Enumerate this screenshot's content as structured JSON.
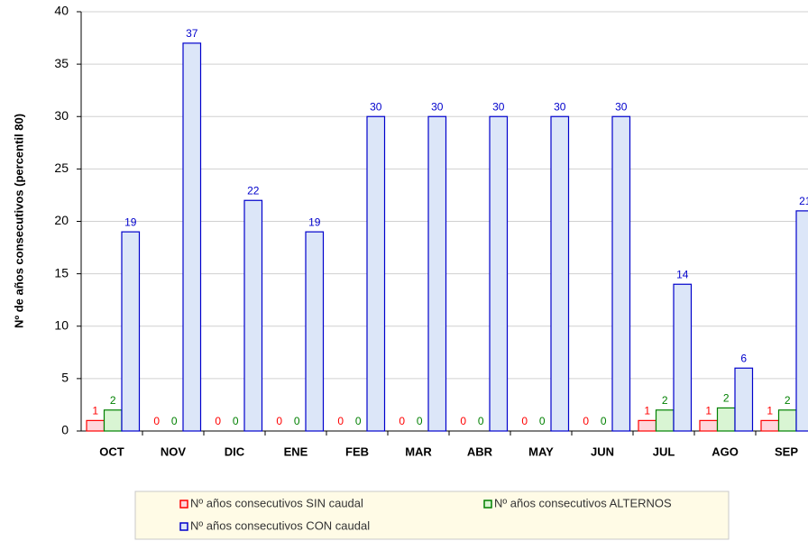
{
  "chart_data": {
    "type": "bar",
    "y_label": "Nº de años consecutivos (percentil 80)",
    "categories": [
      "OCT",
      "NOV",
      "DIC",
      "ENE",
      "FEB",
      "MAR",
      "ABR",
      "MAY",
      "JUN",
      "JUL",
      "AGO",
      "SEP"
    ],
    "series": [
      {
        "name": "Nº años consecutivos SIN caudal",
        "color": "#ff0000",
        "fill": "#ffd6dc",
        "values": [
          1,
          0,
          0,
          0,
          0,
          0,
          0,
          0,
          0,
          1,
          1,
          1
        ]
      },
      {
        "name": "Nº años consecutivos ALTERNOS",
        "color": "#008000",
        "fill": "#d9f5d3",
        "values": [
          2,
          0,
          0,
          0,
          0,
          0,
          0,
          0,
          0,
          2,
          2.2,
          2
        ],
        "value_labels": [
          "2",
          "0",
          "0",
          "0",
          "0",
          "0",
          "0",
          "0",
          "0",
          "2",
          "2",
          "2"
        ]
      },
      {
        "name": "Nº años consecutivos CON caudal",
        "color": "#0000cc",
        "fill": "#dce6f8",
        "values": [
          19,
          37,
          22,
          19,
          30,
          30,
          30,
          30,
          30,
          14,
          6,
          21
        ]
      }
    ],
    "ylim": [
      0,
      40
    ],
    "yticks": [
      0,
      5,
      10,
      15,
      20,
      25,
      30,
      35,
      40
    ],
    "grid": true
  }
}
